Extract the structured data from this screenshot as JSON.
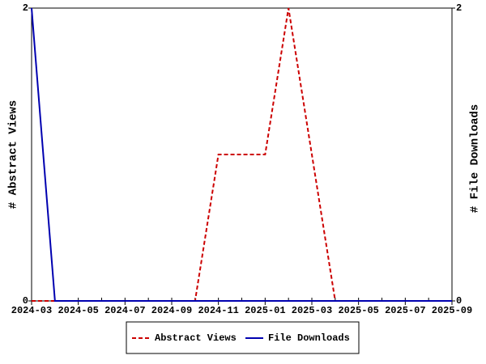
{
  "chart_data": {
    "type": "line",
    "x": [
      "2024-03",
      "2024-04",
      "2024-05",
      "2024-06",
      "2024-07",
      "2024-08",
      "2024-09",
      "2024-10",
      "2024-11",
      "2024-12",
      "2025-01",
      "2025-02",
      "2025-03",
      "2025-04",
      "2025-05",
      "2025-06",
      "2025-07",
      "2025-08",
      "2025-09"
    ],
    "xlim": [
      "2024-03",
      "2025-09"
    ],
    "xticks": [
      "2024-03",
      "2024-05",
      "2024-07",
      "2024-09",
      "2024-11",
      "2025-01",
      "2025-03",
      "2025-05",
      "2025-07",
      "2025-09"
    ],
    "ylabel": "# Abstract Views",
    "y2label": "# File Downloads",
    "ylim": [
      0,
      2
    ],
    "yticks": [
      0,
      2
    ],
    "y2lim": [
      0,
      2
    ],
    "y2ticks": [
      0,
      2
    ],
    "series": [
      {
        "name": "Abstract Views",
        "color": "#cc0000",
        "dashed": true,
        "values": [
          0,
          0,
          0,
          0,
          0,
          0,
          0,
          0,
          1,
          1,
          1,
          2,
          1,
          0,
          0,
          0,
          0,
          0,
          0
        ]
      },
      {
        "name": "File Downloads",
        "color": "#0000b0",
        "dashed": false,
        "axis": "y2",
        "values": [
          2,
          0,
          0,
          0,
          0,
          0,
          0,
          0,
          0,
          0,
          0,
          0,
          0,
          0,
          0,
          0,
          0,
          0,
          0
        ]
      }
    ]
  }
}
